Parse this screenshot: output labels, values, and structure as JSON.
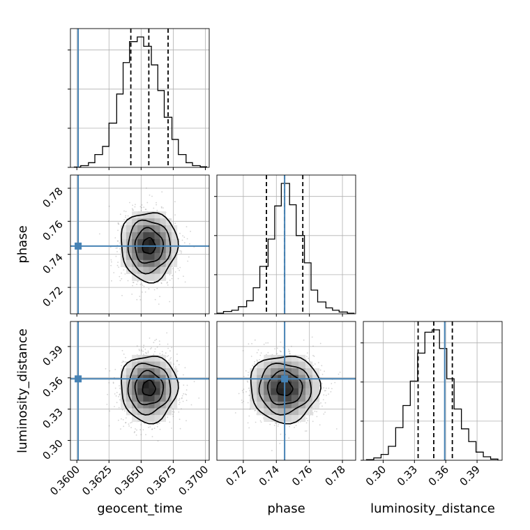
{
  "chart_data": {
    "type": "corner",
    "parameters": [
      {
        "name": "geocent_time",
        "label": "geocent_time",
        "range": [
          0.3595,
          0.3703
        ],
        "ticks": [
          0.36,
          0.3625,
          0.365,
          0.3675,
          0.37
        ],
        "tick_labels": [
          "0.3600",
          "0.3625",
          "0.3650",
          "0.3675",
          "0.3700"
        ],
        "injection": 0.3601,
        "quantiles": [
          0.3642,
          0.3656,
          0.3671
        ],
        "hist_edges": [
          0.3598,
          0.3603,
          0.3609,
          0.3614,
          0.362,
          0.3625,
          0.3631,
          0.3636,
          0.3641,
          0.3647,
          0.3652,
          0.3658,
          0.3663,
          0.3668,
          0.3674,
          0.3679,
          0.3685,
          0.369,
          0.3696,
          0.3701
        ],
        "hist_counts": [
          0.3,
          1.5,
          4,
          11,
          18,
          38,
          63,
          90,
          108,
          112,
          104,
          88,
          66,
          43,
          24,
          11,
          4,
          1.5,
          0.5
        ]
      },
      {
        "name": "phase",
        "label": "phase",
        "range": [
          0.704,
          0.788
        ],
        "ticks": [
          0.72,
          0.74,
          0.76,
          0.78
        ],
        "tick_labels": [
          "0.72",
          "0.74",
          "0.76",
          "0.78"
        ],
        "injection": 0.745,
        "quantiles": [
          0.734,
          0.745,
          0.756
        ],
        "hist_edges": [
          0.704,
          0.708,
          0.713,
          0.717,
          0.722,
          0.726,
          0.73,
          0.735,
          0.739,
          0.743,
          0.748,
          0.752,
          0.757,
          0.761,
          0.765,
          0.77,
          0.774,
          0.778,
          0.783,
          0.787
        ],
        "hist_counts": [
          0.5,
          2,
          3,
          6,
          11,
          22,
          40,
          63,
          91,
          110,
          92,
          66,
          43,
          20,
          10,
          5,
          3,
          1.5,
          0.5
        ]
      },
      {
        "name": "luminosity_distance",
        "label": "luminosity_distance",
        "range": [
          0.281,
          0.414
        ],
        "ticks": [
          0.3,
          0.33,
          0.36,
          0.39
        ],
        "tick_labels": [
          "0.30",
          "0.33",
          "0.36",
          "0.39"
        ],
        "injection": 0.359,
        "quantiles": [
          0.3335,
          0.3485,
          0.3663
        ],
        "hist_edges": [
          0.284,
          0.291,
          0.298,
          0.305,
          0.312,
          0.319,
          0.326,
          0.333,
          0.34,
          0.347,
          0.354,
          0.361,
          0.368,
          0.375,
          0.382,
          0.389,
          0.396,
          0.403,
          0.41
        ],
        "hist_counts": [
          0.5,
          2,
          5,
          12,
          28,
          47,
          68,
          92,
          110,
          112,
          96,
          70,
          44,
          27,
          16,
          7,
          3,
          1
        ]
      }
    ],
    "pair_panels": [
      {
        "x": "geocent_time",
        "y": "phase",
        "mean": [
          0.3656,
          0.745
        ],
        "sigma": [
          0.0011,
          0.0105
        ]
      },
      {
        "x": "geocent_time",
        "y": "luminosity_distance",
        "mean": [
          0.3656,
          0.35
        ],
        "sigma": [
          0.0011,
          0.016
        ]
      },
      {
        "x": "phase",
        "y": "luminosity_distance",
        "mean": [
          0.745,
          0.35
        ],
        "sigma": [
          0.0105,
          0.016
        ]
      }
    ],
    "colors": {
      "truth": "#4682b4",
      "hist": "#000000",
      "scatter": "#808080",
      "grid": "#b0b0b0"
    },
    "grid": true
  }
}
